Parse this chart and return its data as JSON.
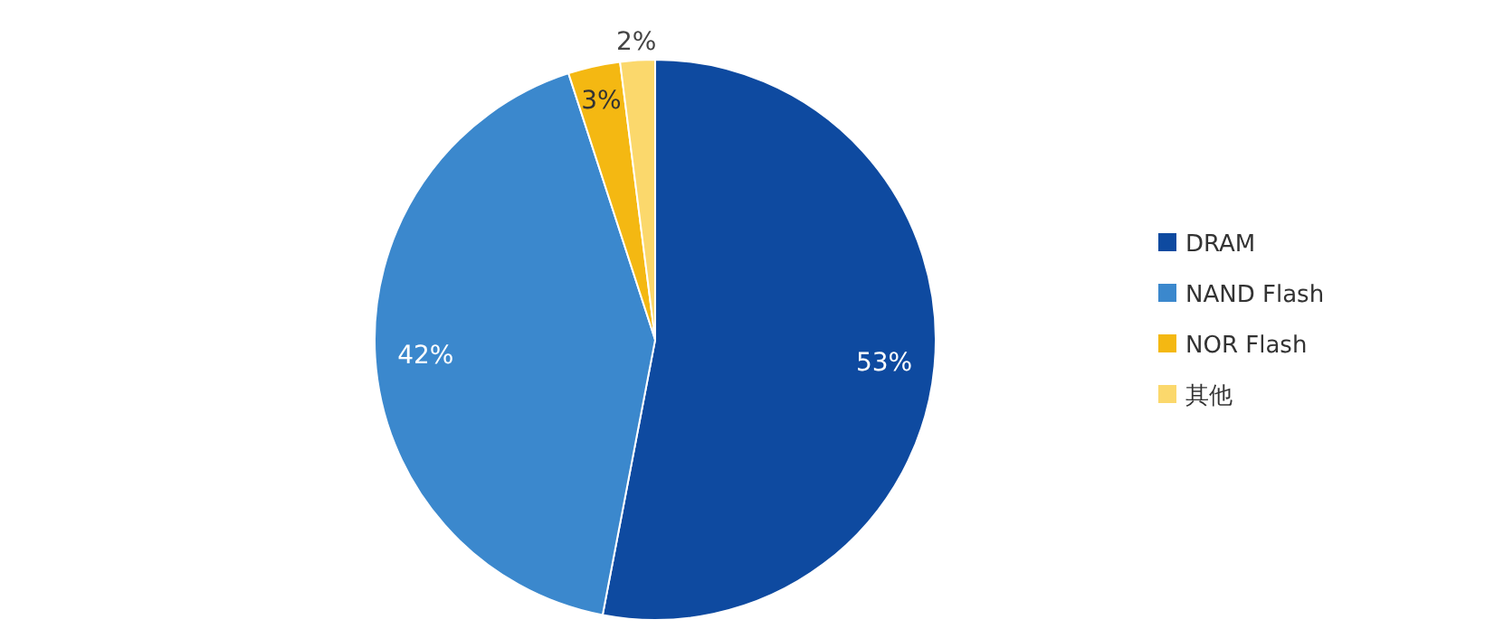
{
  "chart_data": {
    "type": "pie",
    "categories": [
      "DRAM",
      "NAND Flash",
      "NOR Flash",
      "其他"
    ],
    "values": [
      53,
      42,
      3,
      2
    ],
    "colors": [
      "#0e4aa0",
      "#3b88cd",
      "#f4b812",
      "#fbd86c"
    ],
    "value_labels": [
      "53%",
      "42%",
      "3%",
      "2%"
    ],
    "legend": "right"
  }
}
